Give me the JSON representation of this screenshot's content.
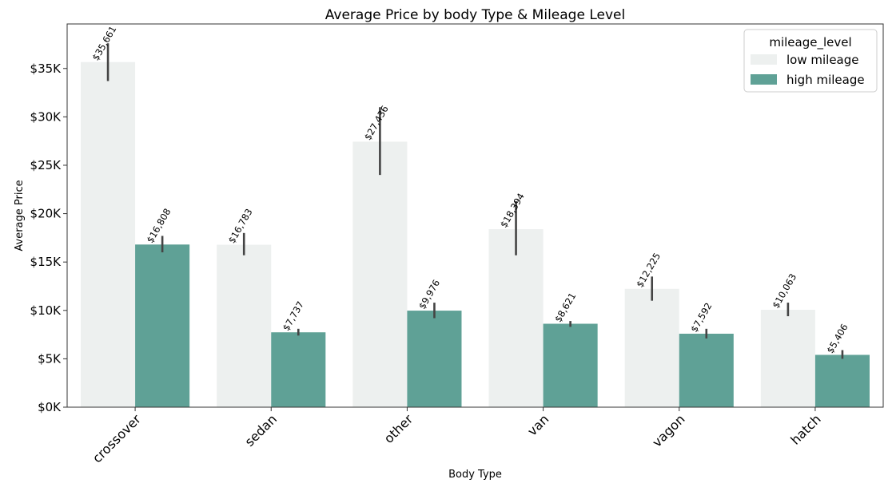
{
  "chart_data": {
    "type": "bar",
    "title": "Average Price by body Type & Mileage Level",
    "xlabel": "Body Type",
    "ylabel": "Average Price",
    "categories": [
      "crossover",
      "sedan",
      "other",
      "van",
      "vagon",
      "hatch"
    ],
    "series": [
      {
        "name": "low mileage",
        "color": "#edf0ef",
        "values": [
          35661,
          16783,
          27436,
          18394,
          12225,
          10063
        ],
        "value_labels": [
          "$35,661",
          "$16,783",
          "$27,436",
          "$18,394",
          "$12,225",
          "$10,063"
        ],
        "error_low": [
          33700,
          15700,
          24000,
          15700,
          11000,
          9400
        ],
        "error_high": [
          37600,
          18000,
          31000,
          21300,
          13500,
          10800
        ]
      },
      {
        "name": "high mileage",
        "color": "#5fa196",
        "values": [
          16808,
          7737,
          9976,
          8621,
          7592,
          5406
        ],
        "value_labels": [
          "$16,808",
          "$7,737",
          "$9,976",
          "$8,621",
          "$7,592",
          "$5,406"
        ],
        "error_low": [
          16000,
          7400,
          9200,
          8300,
          7100,
          5000
        ],
        "error_high": [
          17700,
          8100,
          10800,
          8900,
          8100,
          5900
        ]
      }
    ],
    "ylim": [
      0,
      39600
    ],
    "y_ticks": [
      0,
      5000,
      10000,
      15000,
      20000,
      25000,
      30000,
      35000
    ],
    "y_tick_labels": [
      "$0K",
      "$5K",
      "$10K",
      "$15K",
      "$20K",
      "$25K",
      "$30K",
      "$35K"
    ],
    "grid": false,
    "legend": {
      "title": "mileage_level",
      "placement": "top-right"
    }
  }
}
